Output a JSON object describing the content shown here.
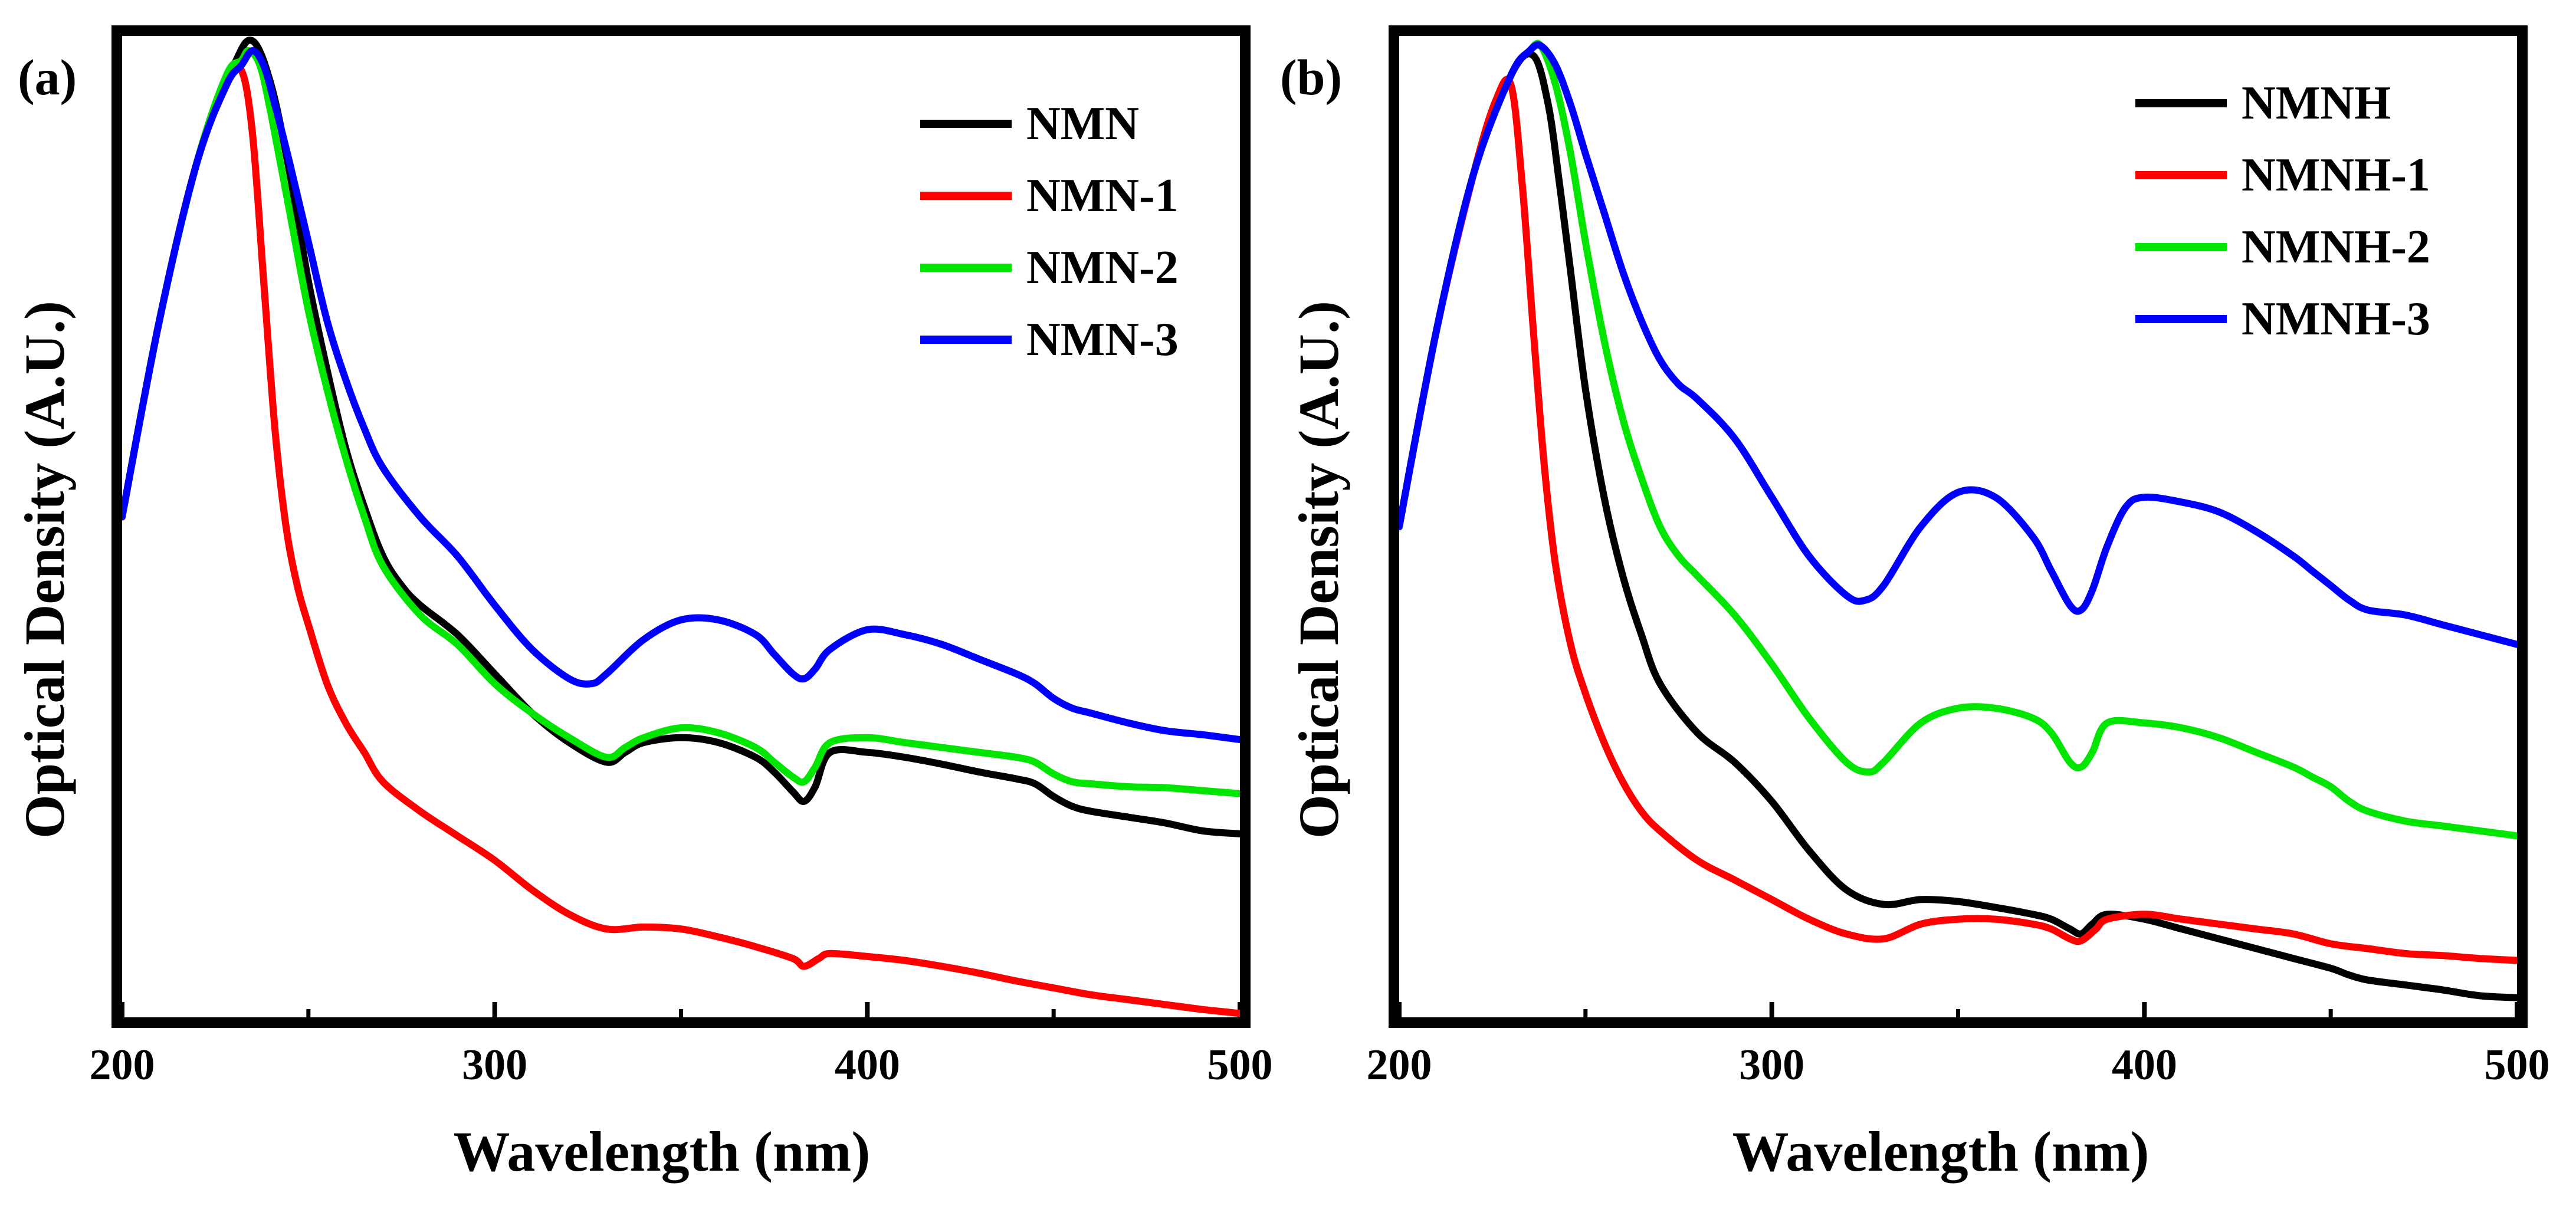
{
  "figure": {
    "panel_labels": [
      "(a)",
      "(b)"
    ]
  },
  "chart_data": [
    {
      "type": "line",
      "panel": "(a)",
      "xlabel": "Wavelength (nm)",
      "ylabel": "Optical Density (A.U.)",
      "xlim": [
        200,
        500
      ],
      "ylim": [
        0,
        1
      ],
      "xticks": [
        200,
        300,
        400,
        500
      ],
      "xtick_labels": [
        "200",
        "300",
        "400",
        "500"
      ],
      "yticks_shown": false,
      "legend_position": "top-right",
      "series": [
        {
          "name": "NMN",
          "color": "#000000",
          "x": [
            200,
            210,
            220,
            230,
            235,
            240,
            245,
            250,
            255,
            260,
            265,
            270,
            275,
            280,
            290,
            300,
            310,
            320,
            330,
            335,
            340,
            350,
            360,
            370,
            375,
            380,
            383,
            386,
            390,
            400,
            410,
            420,
            430,
            440,
            445,
            450,
            455,
            460,
            470,
            480,
            490,
            500
          ],
          "y": [
            0.51,
            0.71,
            0.87,
            0.97,
            0.995,
            0.95,
            0.86,
            0.75,
            0.66,
            0.58,
            0.52,
            0.47,
            0.44,
            0.42,
            0.39,
            0.35,
            0.31,
            0.28,
            0.26,
            0.27,
            0.28,
            0.285,
            0.28,
            0.265,
            0.25,
            0.23,
            0.22,
            0.235,
            0.27,
            0.27,
            0.265,
            0.258,
            0.25,
            0.243,
            0.238,
            0.225,
            0.215,
            0.21,
            0.204,
            0.198,
            0.19,
            0.187
          ]
        },
        {
          "name": "NMN-1",
          "color": "#ff0000",
          "x": [
            200,
            210,
            220,
            228,
            232,
            235,
            238,
            241,
            244,
            247,
            250,
            255,
            260,
            265,
            270,
            280,
            290,
            300,
            310,
            320,
            330,
            340,
            350,
            360,
            370,
            380,
            383,
            387,
            390,
            400,
            410,
            420,
            430,
            440,
            450,
            460,
            470,
            480,
            490,
            500
          ],
          "y": [
            0.51,
            0.71,
            0.87,
            0.95,
            0.965,
            0.9,
            0.75,
            0.6,
            0.5,
            0.44,
            0.4,
            0.34,
            0.3,
            0.27,
            0.24,
            0.21,
            0.185,
            0.16,
            0.13,
            0.105,
            0.09,
            0.092,
            0.09,
            0.082,
            0.072,
            0.06,
            0.052,
            0.06,
            0.065,
            0.062,
            0.058,
            0.052,
            0.045,
            0.037,
            0.03,
            0.023,
            0.018,
            0.013,
            0.008,
            0.004
          ]
        },
        {
          "name": "NMN-2",
          "color": "#00e600",
          "x": [
            200,
            210,
            220,
            228,
            232,
            234,
            237,
            240,
            245,
            250,
            255,
            260,
            265,
            270,
            280,
            290,
            300,
            310,
            320,
            330,
            335,
            340,
            350,
            360,
            370,
            375,
            380,
            383,
            386,
            390,
            400,
            410,
            420,
            430,
            440,
            445,
            450,
            455,
            460,
            470,
            480,
            490,
            500
          ],
          "y": [
            0.51,
            0.71,
            0.87,
            0.96,
            0.975,
            0.985,
            0.97,
            0.92,
            0.82,
            0.72,
            0.64,
            0.57,
            0.51,
            0.46,
            0.41,
            0.38,
            0.34,
            0.31,
            0.285,
            0.265,
            0.275,
            0.285,
            0.295,
            0.29,
            0.275,
            0.26,
            0.245,
            0.24,
            0.255,
            0.28,
            0.285,
            0.28,
            0.275,
            0.27,
            0.265,
            0.26,
            0.248,
            0.24,
            0.238,
            0.235,
            0.234,
            0.231,
            0.228
          ]
        },
        {
          "name": "NMN-3",
          "color": "#0000ff",
          "x": [
            200,
            210,
            220,
            228,
            232,
            235,
            238,
            241,
            245,
            250,
            255,
            260,
            265,
            270,
            280,
            290,
            300,
            310,
            320,
            326,
            330,
            340,
            350,
            360,
            370,
            375,
            380,
            383,
            386,
            390,
            400,
            410,
            420,
            430,
            440,
            445,
            450,
            455,
            460,
            470,
            480,
            490,
            500
          ],
          "y": [
            0.51,
            0.71,
            0.87,
            0.95,
            0.97,
            0.985,
            0.97,
            0.93,
            0.87,
            0.79,
            0.71,
            0.65,
            0.6,
            0.56,
            0.51,
            0.47,
            0.42,
            0.375,
            0.345,
            0.34,
            0.35,
            0.385,
            0.405,
            0.405,
            0.39,
            0.37,
            0.35,
            0.345,
            0.355,
            0.375,
            0.395,
            0.39,
            0.38,
            0.365,
            0.35,
            0.34,
            0.325,
            0.315,
            0.31,
            0.3,
            0.292,
            0.288,
            0.283
          ]
        }
      ]
    },
    {
      "type": "line",
      "panel": "(b)",
      "xlabel": "Wavelength (nm)",
      "ylabel": "Optical Density (A.U.)",
      "xlim": [
        200,
        500
      ],
      "ylim": [
        0,
        1
      ],
      "xticks": [
        200,
        300,
        400,
        500
      ],
      "xtick_labels": [
        "200",
        "300",
        "400",
        "500"
      ],
      "yticks_shown": false,
      "legend_position": "top-right",
      "series": [
        {
          "name": "NMNH",
          "color": "#000000",
          "x": [
            200,
            210,
            220,
            230,
            236,
            240,
            243,
            246,
            250,
            255,
            260,
            265,
            270,
            280,
            290,
            300,
            310,
            320,
            330,
            340,
            350,
            360,
            370,
            375,
            380,
            383,
            386,
            390,
            400,
            410,
            420,
            430,
            440,
            450,
            455,
            460,
            470,
            480,
            490,
            500
          ],
          "y": [
            0.5,
            0.7,
            0.86,
            0.96,
            0.98,
            0.93,
            0.85,
            0.76,
            0.64,
            0.53,
            0.45,
            0.39,
            0.34,
            0.29,
            0.26,
            0.22,
            0.17,
            0.13,
            0.115,
            0.12,
            0.118,
            0.112,
            0.105,
            0.1,
            0.09,
            0.085,
            0.095,
            0.105,
            0.1,
            0.09,
            0.08,
            0.07,
            0.06,
            0.05,
            0.043,
            0.038,
            0.033,
            0.028,
            0.022,
            0.02
          ]
        },
        {
          "name": "NMNH-1",
          "color": "#ff0000",
          "x": [
            200,
            210,
            220,
            226,
            230,
            233,
            236,
            239,
            242,
            246,
            250,
            255,
            260,
            265,
            270,
            280,
            290,
            300,
            310,
            320,
            330,
            340,
            350,
            360,
            370,
            375,
            380,
            383,
            387,
            390,
            400,
            410,
            420,
            430,
            440,
            450,
            460,
            470,
            480,
            490,
            500
          ],
          "y": [
            0.5,
            0.7,
            0.86,
            0.935,
            0.95,
            0.85,
            0.7,
            0.56,
            0.46,
            0.38,
            0.33,
            0.28,
            0.24,
            0.21,
            0.19,
            0.16,
            0.14,
            0.12,
            0.1,
            0.085,
            0.08,
            0.095,
            0.1,
            0.1,
            0.095,
            0.09,
            0.08,
            0.078,
            0.09,
            0.1,
            0.105,
            0.1,
            0.095,
            0.09,
            0.085,
            0.075,
            0.07,
            0.065,
            0.063,
            0.06,
            0.058
          ]
        },
        {
          "name": "NMNH-2",
          "color": "#00e600",
          "x": [
            200,
            210,
            220,
            230,
            235,
            238,
            242,
            246,
            250,
            255,
            260,
            265,
            270,
            275,
            280,
            290,
            300,
            310,
            320,
            326,
            330,
            340,
            350,
            360,
            370,
            375,
            380,
            383,
            386,
            390,
            400,
            410,
            420,
            430,
            440,
            445,
            450,
            455,
            460,
            470,
            480,
            490,
            500
          ],
          "y": [
            0.5,
            0.7,
            0.86,
            0.96,
            0.985,
            0.99,
            0.95,
            0.88,
            0.79,
            0.69,
            0.61,
            0.55,
            0.5,
            0.47,
            0.45,
            0.41,
            0.36,
            0.305,
            0.26,
            0.25,
            0.26,
            0.3,
            0.315,
            0.315,
            0.305,
            0.29,
            0.26,
            0.255,
            0.27,
            0.3,
            0.3,
            0.295,
            0.285,
            0.27,
            0.255,
            0.245,
            0.235,
            0.22,
            0.21,
            0.2,
            0.195,
            0.19,
            0.185
          ]
        },
        {
          "name": "NMNH-3",
          "color": "#0000ff",
          "x": [
            200,
            210,
            220,
            230,
            235,
            238,
            242,
            246,
            250,
            255,
            260,
            265,
            270,
            275,
            280,
            290,
            300,
            310,
            320,
            325,
            330,
            340,
            350,
            360,
            370,
            375,
            380,
            383,
            386,
            390,
            395,
            400,
            410,
            420,
            430,
            440,
            445,
            450,
            455,
            460,
            470,
            480,
            490,
            500
          ],
          "y": [
            0.5,
            0.7,
            0.86,
            0.96,
            0.985,
            0.99,
            0.97,
            0.93,
            0.88,
            0.82,
            0.76,
            0.71,
            0.67,
            0.645,
            0.63,
            0.59,
            0.53,
            0.47,
            0.43,
            0.425,
            0.44,
            0.5,
            0.535,
            0.53,
            0.49,
            0.455,
            0.42,
            0.415,
            0.435,
            0.48,
            0.52,
            0.53,
            0.525,
            0.515,
            0.495,
            0.47,
            0.455,
            0.44,
            0.425,
            0.415,
            0.41,
            0.4,
            0.39,
            0.38
          ]
        }
      ]
    }
  ]
}
